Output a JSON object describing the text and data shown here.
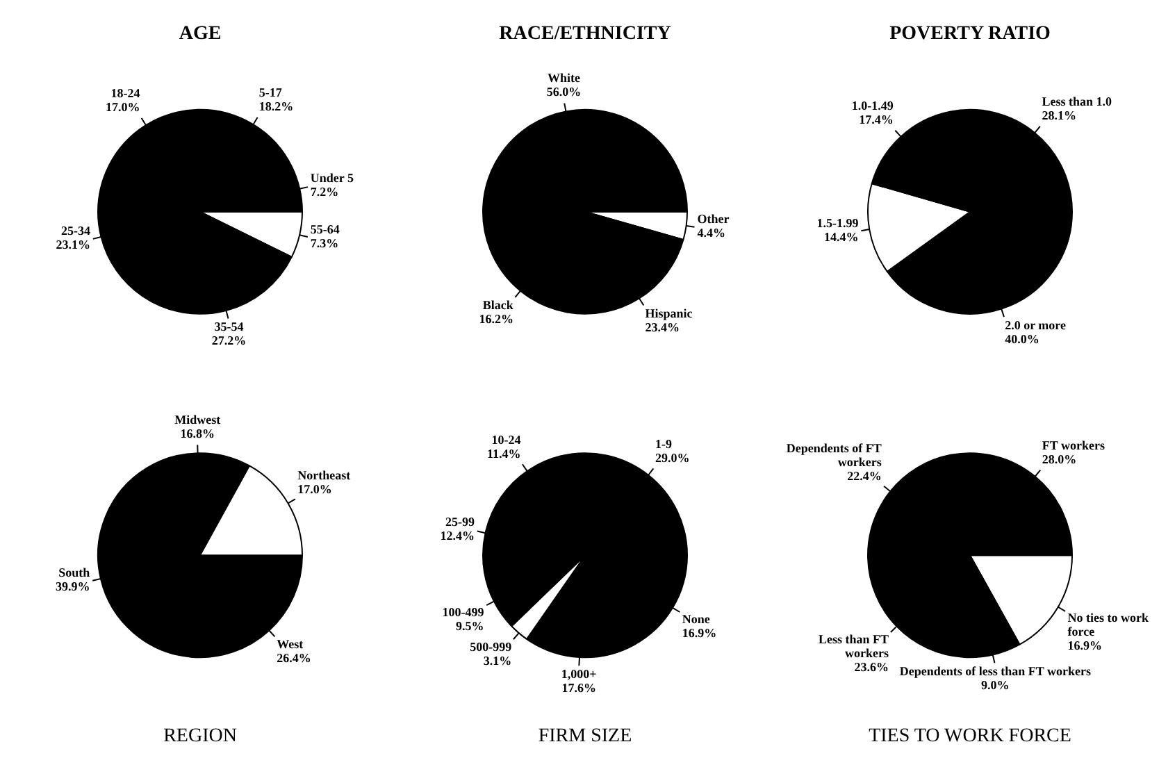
{
  "chart_data": [
    {
      "type": "pie",
      "title": "AGE",
      "categories": [
        "55-64",
        "35-54",
        "25-34",
        "18-24",
        "5-17",
        "Under 5"
      ],
      "values": [
        7.3,
        27.2,
        23.1,
        17.0,
        18.2,
        7.2
      ],
      "value_labels": [
        "7.3%",
        "27.2%",
        "23.1%",
        "17.0%",
        "18.2%",
        "7.2%"
      ],
      "colors": [
        "#ffffff",
        "#000000",
        "#000000",
        "#000000",
        "#000000",
        "#000000"
      ]
    },
    {
      "type": "pie",
      "title": "RACE/ETHNICITY",
      "categories": [
        "Other",
        "Hispanic",
        "Black",
        "White"
      ],
      "values": [
        4.4,
        23.4,
        16.2,
        56.0
      ],
      "value_labels": [
        "4.4%",
        "23.4%",
        "16.2%",
        "56.0%"
      ],
      "colors": [
        "#ffffff",
        "#000000",
        "#000000",
        "#000000"
      ]
    },
    {
      "type": "pie",
      "title": "POVERTY RATIO",
      "categories": [
        "2.0 or more",
        "1.5-1.99",
        "1.0-1.49",
        "Less than 1.0"
      ],
      "values": [
        40.0,
        14.4,
        17.4,
        28.1
      ],
      "value_labels": [
        "40.0%",
        "14.4%",
        "17.4%",
        "28.1%"
      ],
      "colors": [
        "#000000",
        "#ffffff",
        "#000000",
        "#000000"
      ]
    },
    {
      "type": "pie",
      "title": "REGION",
      "categories": [
        "West",
        "South",
        "Midwest",
        "Northeast"
      ],
      "values": [
        26.4,
        39.9,
        16.8,
        17.0
      ],
      "value_labels": [
        "26.4%",
        "39.9%",
        "16.8%",
        "17.0%"
      ],
      "colors": [
        "#000000",
        "#000000",
        "#000000",
        "#ffffff"
      ]
    },
    {
      "type": "pie",
      "title": "FIRM SIZE",
      "categories": [
        "1-9",
        "None",
        "1,000+",
        "500-999",
        "100-499",
        "25-99",
        "10-24"
      ],
      "values": [
        29.0,
        16.9,
        17.6,
        3.1,
        9.5,
        12.4,
        11.4
      ],
      "value_labels": [
        "29.0%",
        "16.9%",
        "17.6%",
        "3.1%",
        "9.5%",
        "12.4%",
        "11.4%"
      ],
      "colors": [
        "#000000",
        "#000000",
        "#000000",
        "#ffffff",
        "#000000",
        "#000000",
        "#000000"
      ]
    },
    {
      "type": "pie",
      "title": "TIES TO WORK FORCE",
      "categories": [
        "No ties to work force",
        "Dependents of less than FT workers",
        "Less than FT workers",
        "Dependents of FT workers",
        "FT workers"
      ],
      "values": [
        16.9,
        9.0,
        23.6,
        22.4,
        28.0
      ],
      "value_labels": [
        "16.9%",
        "9.0%",
        "23.6%",
        "22.4%",
        "28.0%"
      ],
      "colors": [
        "#ffffff",
        "#000000",
        "#000000",
        "#000000",
        "#000000"
      ]
    }
  ]
}
